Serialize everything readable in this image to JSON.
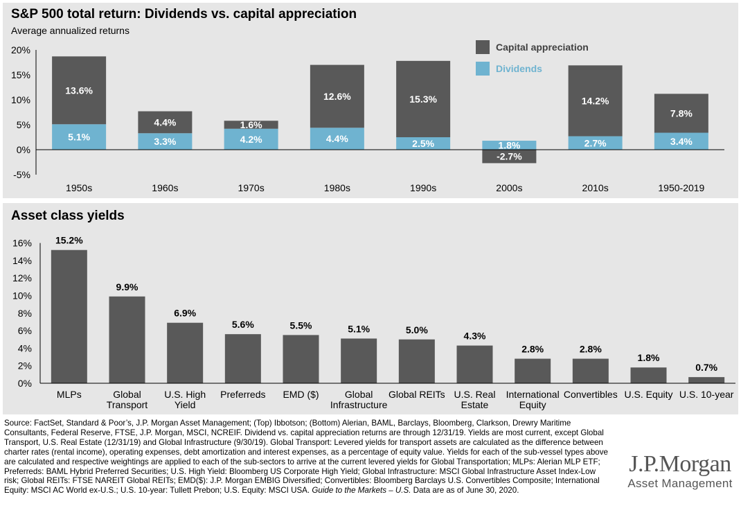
{
  "top_panel": {
    "title": "S&P 500 total return: Dividends vs. capital appreciation",
    "subtitle": "Average annualized returns"
  },
  "bottom_panel": {
    "title": "Asset class yields"
  },
  "colors": {
    "capital": "#595959",
    "dividends": "#6fb3d0",
    "yield_bar": "#595959",
    "legend_capital_text": "#404040",
    "legend_dividends_text": "#6fb3d0",
    "panel_bg": "#e6e6e6"
  },
  "chart_data": [
    {
      "type": "bar",
      "stacked": true,
      "title": "S&P 500 total return: Dividends vs. capital appreciation",
      "subtitle": "Average annualized returns",
      "categories": [
        "1950s",
        "1960s",
        "1970s",
        "1980s",
        "1990s",
        "2000s",
        "2010s",
        "1950-2019"
      ],
      "series": [
        {
          "name": "Dividends",
          "values": [
            5.1,
            3.3,
            4.2,
            4.4,
            2.5,
            1.8,
            2.7,
            3.4
          ]
        },
        {
          "name": "Capital appreciation",
          "values": [
            13.6,
            4.4,
            1.6,
            12.6,
            15.3,
            -2.7,
            14.2,
            7.8
          ]
        }
      ],
      "labels": {
        "Dividends": [
          "5.1%",
          "3.3%",
          "4.2%",
          "4.4%",
          "2.5%",
          "1.8%",
          "2.7%",
          "3.4%"
        ],
        "Capital appreciation": [
          "13.6%",
          "4.4%",
          "1.6%",
          "12.6%",
          "15.3%",
          "-2.7%",
          "14.2%",
          "7.8%"
        ]
      },
      "legend": [
        "Capital appreciation",
        "Dividends"
      ],
      "legend_position": "top-right",
      "ylim": [
        -5,
        20
      ],
      "yticks": [
        20,
        15,
        10,
        5,
        0,
        -5
      ],
      "ytick_labels": [
        "20%",
        "15%",
        "10%",
        "5%",
        "0%",
        "-5%"
      ],
      "grid": false
    },
    {
      "type": "bar",
      "title": "Asset class yields",
      "categories": [
        "MLPs",
        "Global Transport",
        "U.S. High Yield",
        "Preferreds",
        "EMD ($)",
        "Global Infrastructure",
        "Global REITs",
        "U.S. Real Estate",
        "International Equity",
        "Convertibles",
        "U.S. Equity",
        "U.S. 10-year"
      ],
      "category_lines": [
        [
          "MLPs"
        ],
        [
          "Global",
          "Transport"
        ],
        [
          "U.S. High",
          "Yield"
        ],
        [
          "Preferreds"
        ],
        [
          "EMD ($)"
        ],
        [
          "Global",
          "Infrastructure"
        ],
        [
          "Global REITs"
        ],
        [
          "U.S. Real",
          "Estate"
        ],
        [
          "International",
          "Equity"
        ],
        [
          "Convertibles"
        ],
        [
          "U.S. Equity"
        ],
        [
          "U.S. 10-year"
        ]
      ],
      "values": [
        15.2,
        9.9,
        6.9,
        5.6,
        5.5,
        5.1,
        5.0,
        4.3,
        2.8,
        2.8,
        1.8,
        0.7
      ],
      "labels": [
        "15.2%",
        "9.9%",
        "6.9%",
        "5.6%",
        "5.5%",
        "5.1%",
        "5.0%",
        "4.3%",
        "2.8%",
        "2.8%",
        "1.8%",
        "0.7%"
      ],
      "ylim": [
        0,
        16
      ],
      "yticks": [
        16,
        14,
        12,
        10,
        8,
        6,
        4,
        2,
        0
      ],
      "ytick_labels": [
        "16%",
        "14%",
        "12%",
        "10%",
        "8%",
        "6%",
        "4%",
        "2%",
        "0%"
      ],
      "grid": false
    }
  ],
  "source_note": {
    "text": "Source: FactSet, Standard & Poor’s, J.P. Morgan Asset Management; (Top) Ibbotson; (Bottom) Alerian, BAML, Barclays, Bloomberg, Clarkson, Drewry Maritime Consultants, Federal Reserve, FTSE, J.P. Morgan, MSCI, NCREIF. Dividend vs. capital appreciation returns are through 12/31/19. Yields are most current, except Global Transport, U.S. Real Estate (12/31/19) and Global Infrastructure (9/30/19). Global Transport: Levered yields for transport assets are calculated as the difference between charter rates (rental income), operating expenses, debt amortization and interest expenses, as a percentage of equity value. Yields for each of the sub-vessel types above are calculated and respective weightings are applied to each of the sub-sectors to arrive at the current levered yields for Global Transportation; MLPs: Alerian MLP ETF; Preferreds: BAML Hybrid Preferred Securities; U.S. High Yield: Bloomberg US Corporate High Yield; Global Infrastructure: MSCI Global Infrastructure Asset Index-Low risk; Global REITs: FTSE NAREIT Global REITs; EMD($): J.P. Morgan EMBIG Diversified; Convertibles: Bloomberg Barclays U.S. Convertibles Composite; International Equity: MSCI AC World ex-U.S.; U.S. 10-year: Tullett Prebon; U.S. Equity: MSCI USA.",
    "guide": "Guide to the Markets – U.S.",
    "date_text": "Data are as of June 30, 2020."
  },
  "logo": {
    "main": "J.P.Morgan",
    "sub": "Asset Management"
  }
}
